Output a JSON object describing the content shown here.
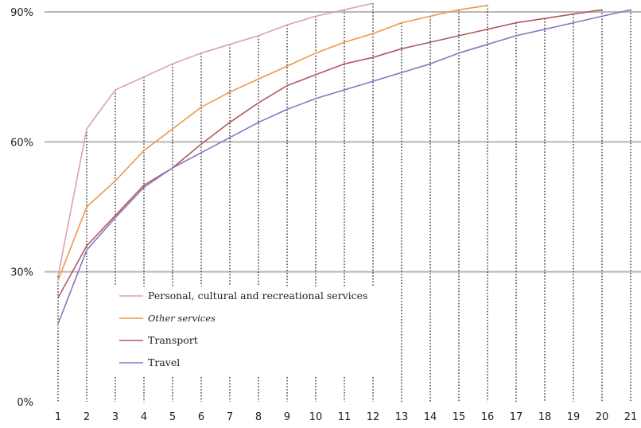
{
  "chart_data": {
    "type": "line",
    "title": "",
    "xlabel": "",
    "ylabel": "",
    "x": [
      1,
      2,
      3,
      4,
      5,
      6,
      7,
      8,
      9,
      10,
      11,
      12,
      13,
      14,
      15,
      16,
      17,
      18,
      19,
      20,
      21
    ],
    "xlim": [
      1,
      21
    ],
    "ylim": [
      0,
      90
    ],
    "y_ticks": [
      0,
      30,
      60,
      90
    ],
    "y_tick_labels": [
      "0%",
      "30%",
      "60%",
      "90%"
    ],
    "grid": "horizontal solid lines at y ticks; dotted vertical lines at each x",
    "legend_position": "bottom-left",
    "series": [
      {
        "name": "Personal, cultural and recreational services",
        "color": "#dba3a8",
        "x": [
          1,
          2,
          3,
          4,
          5,
          6,
          7,
          8,
          9,
          10,
          11,
          12
        ],
        "values": [
          29,
          63,
          72,
          75,
          78,
          80.5,
          82.5,
          84.5,
          87,
          89,
          90.5,
          92
        ]
      },
      {
        "name": "Other services",
        "color": "#eb9a4a",
        "italic": true,
        "x": [
          1,
          2,
          3,
          4,
          5,
          6,
          7,
          8,
          9,
          10,
          11,
          12,
          13,
          14,
          15,
          16
        ],
        "values": [
          28,
          45,
          51,
          58,
          63,
          68,
          71.5,
          74.5,
          77.5,
          80.5,
          83,
          85,
          87.5,
          89,
          90.5,
          91.5
        ]
      },
      {
        "name": "Transport",
        "color": "#b05a5e",
        "x": [
          1,
          2,
          3,
          4,
          5,
          6,
          7,
          8,
          9,
          10,
          11,
          12,
          13,
          14,
          15,
          16,
          17,
          18,
          19,
          20
        ],
        "values": [
          24,
          36,
          43,
          50,
          54,
          59.5,
          64.5,
          69,
          73,
          75.5,
          78,
          79.5,
          81.5,
          83,
          84.5,
          86,
          87.5,
          88.5,
          89.5,
          90.5
        ]
      },
      {
        "name": "Travel",
        "color": "#8876c6",
        "x": [
          1,
          2,
          3,
          4,
          5,
          6,
          7,
          8,
          9,
          10,
          11,
          12,
          13,
          14,
          15,
          16,
          17,
          18,
          19,
          20,
          21
        ],
        "values": [
          18,
          35,
          42.5,
          49.5,
          54,
          57.5,
          61,
          64.5,
          67.5,
          70,
          72,
          74,
          76,
          78,
          80.5,
          82.5,
          84.5,
          86,
          87.5,
          89,
          90.5
        ]
      }
    ]
  }
}
